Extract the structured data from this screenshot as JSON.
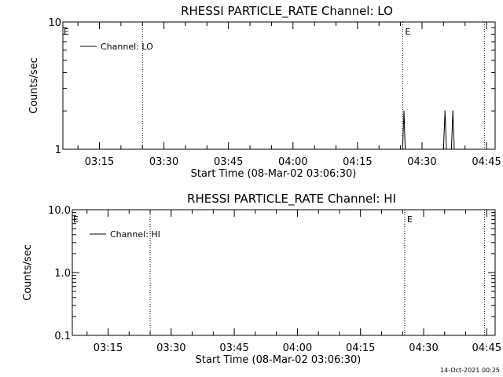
{
  "footer_date": "14-Oct-2021 00:25",
  "chart_data": [
    {
      "type": "line",
      "title": "RHESSI PARTICLE_RATE Channel: LO",
      "xlabel": "Start Time (08-Mar-02 03:06:30)",
      "ylabel": "Counts/sec",
      "y_scale": "log",
      "ylim": [
        1,
        10
      ],
      "y_ticks": [
        "1",
        "10"
      ],
      "xlim": [
        "03:06:30",
        "04:47:00"
      ],
      "x_ticks": [
        "03:15",
        "03:30",
        "03:45",
        "04:00",
        "04:15",
        "04:30",
        "04:45"
      ],
      "legend": {
        "label": "Channel: LO",
        "position": "top-left"
      },
      "event_markers": [
        {
          "time": "03:25:00",
          "label": ""
        },
        {
          "time": "04:25:30",
          "label": "E"
        },
        {
          "time": "04:44:30",
          "label": ""
        }
      ],
      "edge_label": "E",
      "series": [
        {
          "name": "Channel: LO",
          "x": [
            "04:25:30",
            "04:25:48",
            "04:26:06",
            "04:35:00",
            "04:35:20",
            "04:35:40",
            "04:36:50",
            "04:37:10",
            "04:37:30"
          ],
          "values": [
            1,
            2,
            1,
            1,
            2,
            1,
            1,
            2,
            1
          ]
        }
      ]
    },
    {
      "type": "line",
      "title": "RHESSI PARTICLE_RATE Channel: HI",
      "xlabel": "Start Time (08-Mar-02 03:06:30)",
      "ylabel": "Counts/sec",
      "y_scale": "log",
      "ylim": [
        0.1,
        10
      ],
      "y_ticks": [
        "0.1",
        "1.0",
        "10.0"
      ],
      "xlim": [
        "03:06:30",
        "04:47:00"
      ],
      "x_ticks": [
        "03:15",
        "03:30",
        "03:45",
        "04:00",
        "04:15",
        "04:30",
        "04:45"
      ],
      "legend": {
        "label": "Channel: HI",
        "position": "top-left"
      },
      "event_markers": [
        {
          "time": "03:25:00",
          "label": ""
        },
        {
          "time": "04:25:30",
          "label": "E"
        },
        {
          "time": "04:44:30",
          "label": ""
        }
      ],
      "edge_label": "E",
      "series": [
        {
          "name": "Channel: HI",
          "x": [],
          "values": []
        }
      ]
    }
  ]
}
